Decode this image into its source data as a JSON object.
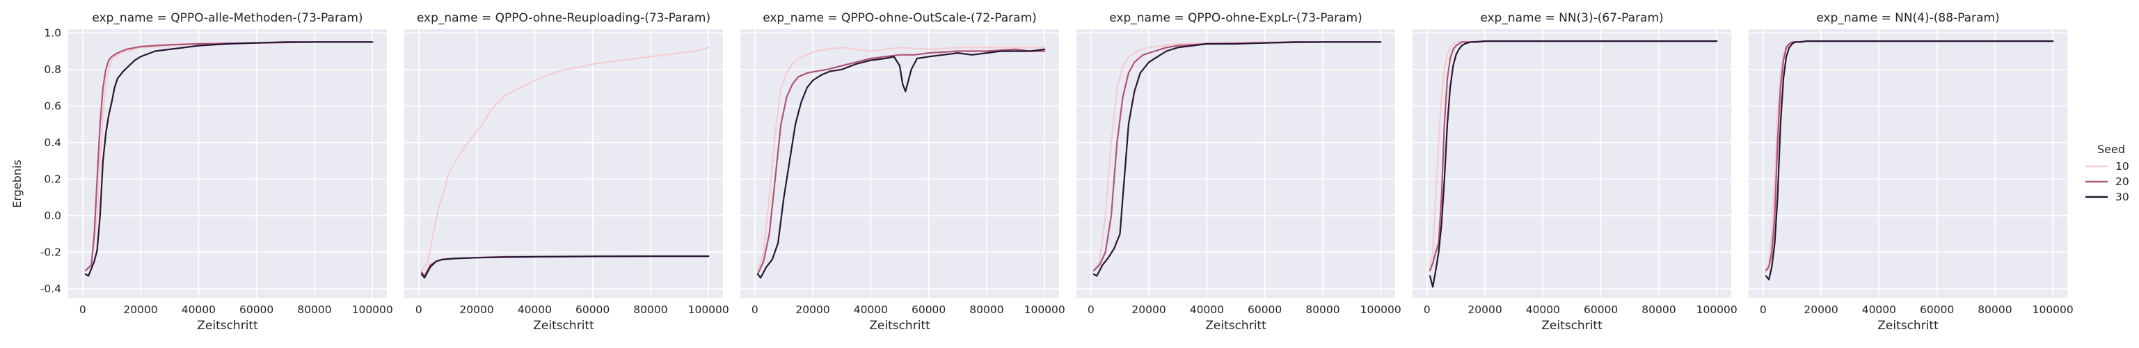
{
  "figure": {
    "shared_ylabel": "Ergebnis",
    "legend_title": "Seed",
    "series_colors": {
      "10": "#f4cdd0",
      "20": "#ae5476",
      "30": "#261535"
    },
    "panel_background": "#eaeaf2",
    "grid_color": "#ffffff"
  },
  "chart_data": [
    {
      "type": "line",
      "title": "exp_name = QPPO-alle-Methoden-(73-Param)",
      "xlabel": "Zeitschritt",
      "ylabel": "Ergebnis",
      "xlim": [
        -5000,
        105000
      ],
      "ylim": [
        -0.45,
        1.02
      ],
      "xticks": [
        0,
        20000,
        40000,
        60000,
        80000,
        100000
      ],
      "yticks": [
        -0.4,
        -0.2,
        0.0,
        0.2,
        0.4,
        0.6,
        0.8,
        1.0
      ],
      "grid": true,
      "series": [
        {
          "name": "10",
          "x": [
            1000,
            3000,
            5000,
            6000,
            7000,
            8000,
            9000,
            10000,
            12000,
            15000,
            20000,
            30000,
            40000,
            60000,
            80000,
            100000
          ],
          "y": [
            -0.3,
            -0.27,
            0.0,
            0.3,
            0.55,
            0.72,
            0.8,
            0.85,
            0.88,
            0.9,
            0.92,
            0.93,
            0.94,
            0.945,
            0.95,
            0.95
          ]
        },
        {
          "name": "20",
          "x": [
            1000,
            3000,
            4000,
            5000,
            6000,
            7000,
            8000,
            9000,
            10000,
            12000,
            15000,
            20000,
            30000,
            40000,
            60000,
            80000,
            100000
          ],
          "y": [
            -0.3,
            -0.27,
            -0.1,
            0.2,
            0.5,
            0.7,
            0.8,
            0.85,
            0.87,
            0.89,
            0.91,
            0.925,
            0.935,
            0.94,
            0.945,
            0.95,
            0.95
          ]
        },
        {
          "name": "30",
          "x": [
            1000,
            2000,
            4000,
            5000,
            6000,
            7000,
            8000,
            9000,
            10000,
            11000,
            12000,
            14000,
            16000,
            18000,
            20000,
            25000,
            30000,
            40000,
            50000,
            60000,
            70000,
            80000,
            90000,
            100000
          ],
          "y": [
            -0.32,
            -0.33,
            -0.25,
            -0.19,
            0.0,
            0.3,
            0.45,
            0.55,
            0.62,
            0.7,
            0.75,
            0.79,
            0.82,
            0.85,
            0.87,
            0.9,
            0.91,
            0.93,
            0.94,
            0.945,
            0.95,
            0.95,
            0.95,
            0.95
          ]
        }
      ]
    },
    {
      "type": "line",
      "title": "exp_name = QPPO-ohne-Reuploading-(73-Param)",
      "xlabel": "Zeitschritt",
      "ylabel": "",
      "xlim": [
        -5000,
        105000
      ],
      "ylim": [
        -0.45,
        1.02
      ],
      "xticks": [
        0,
        20000,
        40000,
        60000,
        80000,
        100000
      ],
      "yticks": [
        -0.4,
        -0.2,
        0.0,
        0.2,
        0.4,
        0.6,
        0.8,
        1.0
      ],
      "grid": true,
      "series": [
        {
          "name": "10",
          "x": [
            1000,
            3000,
            5000,
            7000,
            9000,
            10000,
            12000,
            14000,
            16000,
            18000,
            20000,
            22000,
            25000,
            30000,
            35000,
            40000,
            45000,
            50000,
            55000,
            60000,
            65000,
            70000,
            75000,
            80000,
            85000,
            90000,
            95000,
            100000
          ],
          "y": [
            -0.3,
            -0.26,
            -0.1,
            0.05,
            0.15,
            0.22,
            0.28,
            0.33,
            0.38,
            0.42,
            0.46,
            0.5,
            0.58,
            0.66,
            0.7,
            0.74,
            0.77,
            0.8,
            0.81,
            0.83,
            0.84,
            0.85,
            0.86,
            0.87,
            0.88,
            0.89,
            0.9,
            0.92
          ]
        },
        {
          "name": "20",
          "x": [
            1000,
            2000,
            4000,
            6000,
            8000,
            12000,
            20000,
            30000,
            40000,
            60000,
            80000,
            100000
          ],
          "y": [
            -0.31,
            -0.33,
            -0.27,
            -0.25,
            -0.24,
            -0.235,
            -0.23,
            -0.225,
            -0.225,
            -0.223,
            -0.222,
            -0.222
          ]
        },
        {
          "name": "30",
          "x": [
            1000,
            2000,
            4000,
            6000,
            8000,
            12000,
            20000,
            30000,
            40000,
            60000,
            80000,
            100000
          ],
          "y": [
            -0.32,
            -0.34,
            -0.28,
            -0.25,
            -0.24,
            -0.235,
            -0.23,
            -0.227,
            -0.225,
            -0.223,
            -0.222,
            -0.222
          ]
        }
      ]
    },
    {
      "type": "line",
      "title": "exp_name = QPPO-ohne-OutScale-(72-Param)",
      "xlabel": "Zeitschritt",
      "ylabel": "",
      "xlim": [
        -5000,
        105000
      ],
      "ylim": [
        -0.45,
        1.02
      ],
      "xticks": [
        0,
        20000,
        40000,
        60000,
        80000,
        100000
      ],
      "yticks": [
        -0.4,
        -0.2,
        0.0,
        0.2,
        0.4,
        0.6,
        0.8,
        1.0
      ],
      "grid": true,
      "series": [
        {
          "name": "10",
          "x": [
            1000,
            3000,
            5000,
            7000,
            9000,
            11000,
            13000,
            15000,
            18000,
            21000,
            25000,
            30000,
            35000,
            40000,
            50000,
            60000,
            70000,
            80000,
            90000,
            100000
          ],
          "y": [
            -0.3,
            -0.2,
            0.1,
            0.45,
            0.7,
            0.78,
            0.83,
            0.86,
            0.88,
            0.9,
            0.91,
            0.92,
            0.91,
            0.9,
            0.92,
            0.91,
            0.92,
            0.92,
            0.92,
            0.92
          ]
        },
        {
          "name": "20",
          "x": [
            1000,
            3000,
            5000,
            7000,
            9000,
            11000,
            13000,
            15000,
            18000,
            21000,
            25000,
            30000,
            35000,
            40000,
            45000,
            50000,
            55000,
            60000,
            70000,
            80000,
            90000,
            95000,
            100000
          ],
          "y": [
            -0.32,
            -0.25,
            -0.1,
            0.2,
            0.5,
            0.65,
            0.72,
            0.76,
            0.78,
            0.79,
            0.8,
            0.82,
            0.84,
            0.86,
            0.87,
            0.88,
            0.88,
            0.89,
            0.9,
            0.9,
            0.91,
            0.9,
            0.9
          ]
        },
        {
          "name": "30",
          "x": [
            1000,
            2000,
            4000,
            6000,
            8000,
            10000,
            12000,
            14000,
            16000,
            18000,
            20000,
            23000,
            26000,
            30000,
            35000,
            40000,
            45000,
            48000,
            50000,
            51000,
            52000,
            54000,
            56000,
            60000,
            65000,
            70000,
            75000,
            80000,
            85000,
            90000,
            95000,
            100000
          ],
          "y": [
            -0.32,
            -0.34,
            -0.28,
            -0.24,
            -0.15,
            0.1,
            0.3,
            0.5,
            0.62,
            0.7,
            0.74,
            0.77,
            0.79,
            0.8,
            0.83,
            0.85,
            0.86,
            0.87,
            0.82,
            0.72,
            0.68,
            0.8,
            0.86,
            0.87,
            0.88,
            0.89,
            0.88,
            0.89,
            0.9,
            0.9,
            0.9,
            0.91
          ]
        }
      ]
    },
    {
      "type": "line",
      "title": "exp_name = QPPO-ohne-ExpLr-(73-Param)",
      "xlabel": "Zeitschritt",
      "ylabel": "",
      "xlim": [
        -5000,
        105000
      ],
      "ylim": [
        -0.45,
        1.02
      ],
      "xticks": [
        0,
        20000,
        40000,
        60000,
        80000,
        100000
      ],
      "yticks": [
        -0.4,
        -0.2,
        0.0,
        0.2,
        0.4,
        0.6,
        0.8,
        1.0
      ],
      "grid": true,
      "series": [
        {
          "name": "10",
          "x": [
            1000,
            3000,
            5000,
            7000,
            9000,
            11000,
            13000,
            16000,
            20000,
            25000,
            30000,
            40000,
            60000,
            80000,
            100000
          ],
          "y": [
            -0.3,
            -0.25,
            0.0,
            0.4,
            0.7,
            0.82,
            0.87,
            0.9,
            0.92,
            0.93,
            0.94,
            0.945,
            0.95,
            0.95,
            0.95
          ]
        },
        {
          "name": "20",
          "x": [
            1000,
            3000,
            5000,
            7000,
            9000,
            11000,
            13000,
            15000,
            18000,
            22000,
            26000,
            30000,
            40000,
            60000,
            80000,
            100000
          ],
          "y": [
            -0.3,
            -0.27,
            -0.2,
            0.0,
            0.4,
            0.65,
            0.78,
            0.84,
            0.88,
            0.9,
            0.92,
            0.93,
            0.94,
            0.945,
            0.95,
            0.95
          ]
        },
        {
          "name": "30",
          "x": [
            1000,
            2000,
            4000,
            6000,
            8000,
            10000,
            11000,
            12000,
            13000,
            15000,
            17000,
            20000,
            23000,
            26000,
            30000,
            35000,
            40000,
            50000,
            60000,
            70000,
            80000,
            90000,
            100000
          ],
          "y": [
            -0.32,
            -0.33,
            -0.27,
            -0.23,
            -0.18,
            -0.1,
            0.1,
            0.3,
            0.5,
            0.68,
            0.78,
            0.84,
            0.87,
            0.9,
            0.92,
            0.93,
            0.94,
            0.94,
            0.945,
            0.95,
            0.95,
            0.95,
            0.95
          ]
        }
      ]
    },
    {
      "type": "line",
      "title": "exp_name = NN(3)-(67-Param)",
      "xlabel": "Zeitschritt",
      "ylabel": "",
      "xlim": [
        -5000,
        105000
      ],
      "ylim": [
        -0.45,
        1.02
      ],
      "xticks": [
        0,
        20000,
        40000,
        60000,
        80000,
        100000
      ],
      "yticks": [
        -0.4,
        -0.2,
        0.0,
        0.2,
        0.4,
        0.6,
        0.8,
        1.0
      ],
      "grid": true,
      "series": [
        {
          "name": "10",
          "x": [
            1000,
            2000,
            3000,
            4000,
            5000,
            6000,
            7000,
            8000,
            9000,
            10000,
            12000,
            15000,
            20000,
            40000,
            60000,
            80000,
            100000
          ],
          "y": [
            -0.3,
            -0.2,
            0.1,
            0.4,
            0.65,
            0.8,
            0.88,
            0.92,
            0.94,
            0.95,
            0.95,
            0.95,
            0.955,
            0.955,
            0.955,
            0.955,
            0.955
          ]
        },
        {
          "name": "20",
          "x": [
            1000,
            2000,
            3000,
            4000,
            5000,
            6000,
            7000,
            8000,
            9000,
            10000,
            11000,
            12000,
            15000,
            20000,
            40000,
            60000,
            80000,
            100000
          ],
          "y": [
            -0.3,
            -0.26,
            -0.2,
            -0.15,
            0.1,
            0.5,
            0.75,
            0.86,
            0.91,
            0.93,
            0.94,
            0.95,
            0.95,
            0.955,
            0.955,
            0.955,
            0.955,
            0.955
          ]
        },
        {
          "name": "30",
          "x": [
            1000,
            2000,
            3000,
            4000,
            5000,
            6000,
            7000,
            8000,
            9000,
            10000,
            11000,
            12000,
            13000,
            15000,
            17000,
            20000,
            40000,
            60000,
            80000,
            100000
          ],
          "y": [
            -0.33,
            -0.39,
            -0.3,
            -0.2,
            -0.05,
            0.2,
            0.5,
            0.7,
            0.82,
            0.88,
            0.91,
            0.93,
            0.94,
            0.95,
            0.95,
            0.955,
            0.955,
            0.955,
            0.955,
            0.955
          ]
        }
      ]
    },
    {
      "type": "line",
      "title": "exp_name = NN(4)-(88-Param)",
      "xlabel": "Zeitschritt",
      "ylabel": "",
      "xlim": [
        -5000,
        105000
      ],
      "ylim": [
        -0.45,
        1.02
      ],
      "xticks": [
        0,
        20000,
        40000,
        60000,
        80000,
        100000
      ],
      "yticks": [
        -0.4,
        -0.2,
        0.0,
        0.2,
        0.4,
        0.6,
        0.8,
        1.0
      ],
      "grid": true,
      "series": [
        {
          "name": "10",
          "x": [
            1000,
            2000,
            3000,
            4000,
            5000,
            6000,
            7000,
            8000,
            9000,
            10000,
            12000,
            15000,
            20000,
            40000,
            60000,
            80000,
            100000
          ],
          "y": [
            -0.3,
            -0.25,
            -0.1,
            0.2,
            0.55,
            0.78,
            0.88,
            0.93,
            0.94,
            0.95,
            0.95,
            0.955,
            0.955,
            0.955,
            0.955,
            0.955,
            0.955
          ]
        },
        {
          "name": "20",
          "x": [
            1000,
            2000,
            3000,
            4000,
            5000,
            6000,
            7000,
            8000,
            9000,
            10000,
            12000,
            15000,
            20000,
            40000,
            60000,
            80000,
            100000
          ],
          "y": [
            -0.3,
            -0.28,
            -0.2,
            0.0,
            0.4,
            0.7,
            0.85,
            0.92,
            0.94,
            0.95,
            0.95,
            0.955,
            0.955,
            0.955,
            0.955,
            0.955,
            0.955
          ]
        },
        {
          "name": "30",
          "x": [
            1000,
            2000,
            3000,
            4000,
            5000,
            6000,
            7000,
            8000,
            9000,
            10000,
            11000,
            13000,
            15000,
            20000,
            40000,
            60000,
            80000,
            100000
          ],
          "y": [
            -0.33,
            -0.35,
            -0.28,
            -0.15,
            0.1,
            0.5,
            0.75,
            0.87,
            0.92,
            0.94,
            0.95,
            0.95,
            0.955,
            0.955,
            0.955,
            0.955,
            0.955,
            0.955
          ]
        }
      ]
    }
  ]
}
